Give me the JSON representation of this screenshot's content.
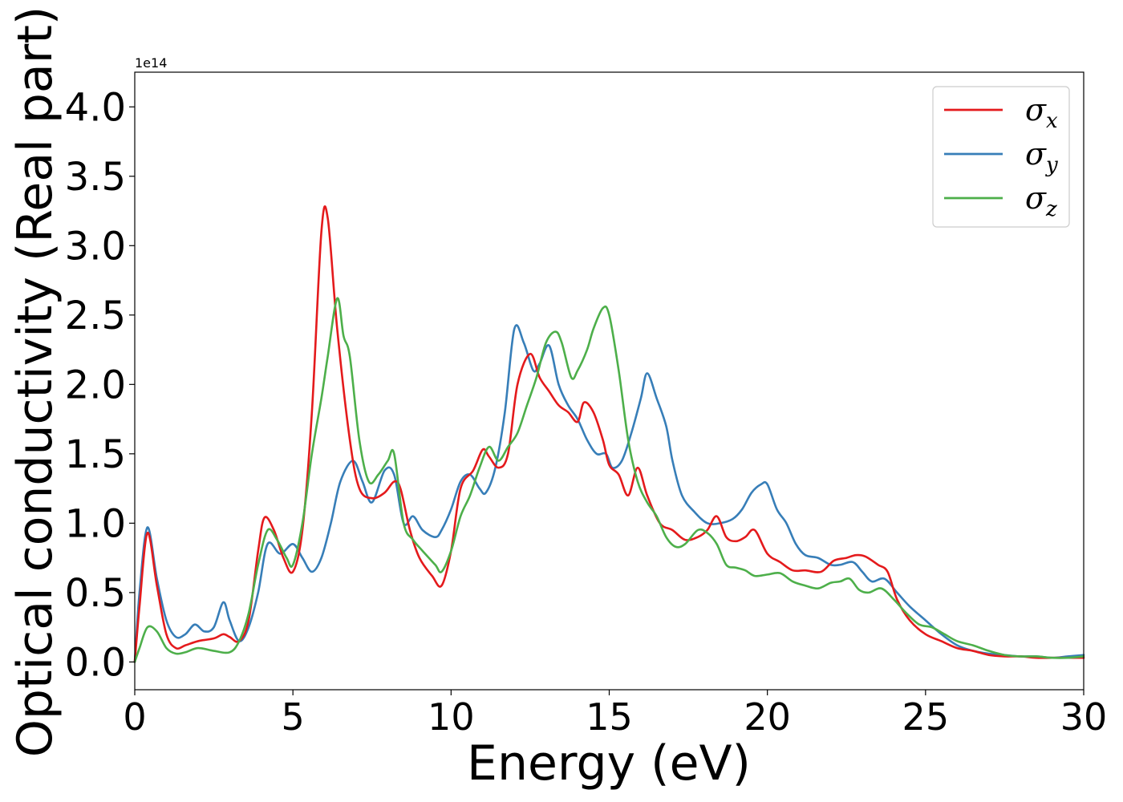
{
  "chart_data": {
    "type": "line",
    "xlabel": "Energy (eV)",
    "ylabel": "Optical conductivity (Real part)",
    "offset_text": "1e14",
    "xlim": [
      0,
      30
    ],
    "ylim": [
      -0.2,
      4.25
    ],
    "xticks": [
      0,
      5,
      10,
      15,
      20,
      25,
      30
    ],
    "xtick_labels": [
      "0",
      "5",
      "10",
      "15",
      "20",
      "25",
      "30"
    ],
    "yticks": [
      0.0,
      0.5,
      1.0,
      1.5,
      2.0,
      2.5,
      3.0,
      3.5,
      4.0
    ],
    "ytick_labels": [
      "0.0",
      "0.5",
      "1.0",
      "1.5",
      "2.0",
      "2.5",
      "3.0",
      "3.5",
      "4.0"
    ],
    "grid": false,
    "legend_position": "upper right",
    "series": [
      {
        "name": "σ",
        "sub": "x",
        "color": "#e41a1c",
        "x": [
          0,
          0.15,
          0.4,
          0.7,
          1.0,
          1.3,
          1.6,
          2.0,
          2.5,
          2.8,
          3.0,
          3.3,
          3.6,
          3.9,
          4.1,
          4.4,
          4.7,
          5.0,
          5.3,
          5.6,
          5.9,
          6.1,
          6.4,
          6.8,
          7.1,
          7.5,
          7.9,
          8.2,
          8.4,
          8.7,
          9.0,
          9.4,
          9.7,
          10.0,
          10.3,
          10.7,
          11.0,
          11.2,
          11.5,
          11.8,
          12.1,
          12.5,
          12.8,
          13.1,
          13.4,
          13.7,
          14.0,
          14.2,
          14.5,
          14.8,
          15.0,
          15.3,
          15.6,
          15.9,
          16.2,
          16.6,
          17.0,
          17.4,
          17.8,
          18.1,
          18.4,
          18.7,
          19.0,
          19.3,
          19.6,
          20.0,
          20.4,
          20.8,
          21.2,
          21.7,
          22.1,
          22.5,
          22.8,
          23.1,
          23.5,
          23.8,
          24.1,
          24.5,
          25.0,
          25.5,
          26.0,
          26.5,
          27.0,
          27.5,
          28.0,
          28.5,
          29.0,
          29.5,
          30.0
        ],
        "y": [
          0.0,
          0.4,
          0.93,
          0.55,
          0.2,
          0.1,
          0.12,
          0.15,
          0.17,
          0.2,
          0.18,
          0.15,
          0.3,
          0.8,
          1.04,
          0.95,
          0.75,
          0.65,
          0.95,
          1.8,
          3.1,
          3.2,
          2.4,
          1.6,
          1.25,
          1.18,
          1.22,
          1.3,
          1.25,
          0.95,
          0.75,
          0.62,
          0.55,
          0.8,
          1.25,
          1.38,
          1.53,
          1.48,
          1.4,
          1.5,
          2.0,
          2.22,
          2.05,
          1.95,
          1.85,
          1.8,
          1.73,
          1.87,
          1.8,
          1.6,
          1.42,
          1.35,
          1.2,
          1.4,
          1.2,
          1.0,
          0.95,
          0.88,
          0.9,
          0.95,
          1.05,
          0.9,
          0.87,
          0.9,
          0.95,
          0.78,
          0.72,
          0.66,
          0.66,
          0.65,
          0.73,
          0.75,
          0.77,
          0.76,
          0.7,
          0.65,
          0.45,
          0.3,
          0.2,
          0.15,
          0.1,
          0.08,
          0.05,
          0.04,
          0.04,
          0.03,
          0.03,
          0.03,
          0.03
        ]
      },
      {
        "name": "σ",
        "sub": "y",
        "color": "#377eb8",
        "x": [
          0,
          0.15,
          0.4,
          0.7,
          1.0,
          1.3,
          1.6,
          1.9,
          2.2,
          2.5,
          2.8,
          3.0,
          3.3,
          3.6,
          3.9,
          4.2,
          4.6,
          5.0,
          5.3,
          5.6,
          5.9,
          6.2,
          6.5,
          6.9,
          7.2,
          7.5,
          7.9,
          8.2,
          8.5,
          8.8,
          9.1,
          9.5,
          9.7,
          10.0,
          10.3,
          10.6,
          10.9,
          11.1,
          11.4,
          11.7,
          12.0,
          12.3,
          12.6,
          12.8,
          13.1,
          13.4,
          13.7,
          14.0,
          14.3,
          14.6,
          14.9,
          15.1,
          15.4,
          15.7,
          16.0,
          16.2,
          16.5,
          16.8,
          17.0,
          17.3,
          17.7,
          18.1,
          18.5,
          18.9,
          19.2,
          19.5,
          19.8,
          20.0,
          20.3,
          20.6,
          20.9,
          21.2,
          21.6,
          22.0,
          22.3,
          22.7,
          23.0,
          23.3,
          23.7,
          24.1,
          24.5,
          25.0,
          25.5,
          26.0,
          26.5,
          27.0,
          27.5,
          28.0,
          28.5,
          29.0,
          29.5,
          30.0
        ],
        "y": [
          0.0,
          0.5,
          0.97,
          0.6,
          0.3,
          0.18,
          0.2,
          0.27,
          0.22,
          0.25,
          0.43,
          0.3,
          0.15,
          0.25,
          0.5,
          0.85,
          0.78,
          0.85,
          0.75,
          0.65,
          0.75,
          1.0,
          1.3,
          1.45,
          1.3,
          1.15,
          1.38,
          1.35,
          1.0,
          1.05,
          0.95,
          0.9,
          0.95,
          1.1,
          1.3,
          1.35,
          1.25,
          1.22,
          1.4,
          1.8,
          2.4,
          2.3,
          2.1,
          2.15,
          2.28,
          2.0,
          1.85,
          1.75,
          1.6,
          1.5,
          1.5,
          1.4,
          1.45,
          1.65,
          1.9,
          2.08,
          1.9,
          1.7,
          1.45,
          1.2,
          1.08,
          1.0,
          1.0,
          1.03,
          1.1,
          1.22,
          1.28,
          1.28,
          1.1,
          1.0,
          0.85,
          0.77,
          0.75,
          0.7,
          0.7,
          0.72,
          0.65,
          0.58,
          0.6,
          0.5,
          0.4,
          0.3,
          0.2,
          0.12,
          0.08,
          0.06,
          0.05,
          0.04,
          0.04,
          0.03,
          0.04,
          0.05
        ]
      },
      {
        "name": "σ",
        "sub": "z",
        "color": "#4daf4a",
        "x": [
          0,
          0.15,
          0.4,
          0.7,
          1.0,
          1.3,
          1.6,
          2.0,
          2.5,
          3.0,
          3.3,
          3.6,
          3.9,
          4.2,
          4.5,
          4.8,
          5.0,
          5.3,
          5.6,
          5.9,
          6.1,
          6.4,
          6.6,
          6.8,
          7.1,
          7.4,
          7.7,
          8.0,
          8.2,
          8.5,
          8.8,
          9.1,
          9.5,
          9.7,
          10.0,
          10.3,
          10.6,
          10.9,
          11.2,
          11.5,
          11.8,
          12.1,
          12.4,
          12.7,
          13.0,
          13.3,
          13.5,
          13.8,
          14.0,
          14.3,
          14.5,
          14.8,
          15.0,
          15.3,
          15.6,
          15.9,
          16.2,
          16.5,
          16.8,
          17.1,
          17.4,
          17.8,
          18.1,
          18.4,
          18.7,
          19.0,
          19.3,
          19.6,
          20.0,
          20.4,
          20.8,
          21.2,
          21.6,
          22.0,
          22.3,
          22.6,
          22.9,
          23.2,
          23.6,
          24.0,
          24.4,
          24.8,
          25.2,
          25.6,
          26.0,
          26.5,
          27.0,
          27.5,
          28.0,
          28.5,
          29.0,
          29.5,
          30.0
        ],
        "y": [
          0.0,
          0.1,
          0.25,
          0.22,
          0.1,
          0.06,
          0.07,
          0.1,
          0.08,
          0.07,
          0.15,
          0.35,
          0.7,
          0.95,
          0.88,
          0.75,
          0.7,
          1.0,
          1.5,
          1.9,
          2.2,
          2.62,
          2.35,
          2.2,
          1.6,
          1.3,
          1.35,
          1.45,
          1.5,
          1.0,
          0.88,
          0.8,
          0.7,
          0.65,
          0.8,
          1.05,
          1.2,
          1.4,
          1.55,
          1.45,
          1.55,
          1.65,
          1.85,
          2.05,
          2.3,
          2.38,
          2.3,
          2.05,
          2.1,
          2.25,
          2.4,
          2.55,
          2.5,
          2.1,
          1.6,
          1.3,
          1.15,
          1.05,
          0.9,
          0.83,
          0.85,
          0.95,
          0.93,
          0.85,
          0.7,
          0.68,
          0.66,
          0.62,
          0.63,
          0.64,
          0.58,
          0.55,
          0.53,
          0.57,
          0.58,
          0.6,
          0.52,
          0.5,
          0.53,
          0.45,
          0.35,
          0.27,
          0.25,
          0.2,
          0.15,
          0.12,
          0.08,
          0.05,
          0.04,
          0.04,
          0.03,
          0.03,
          0.04
        ]
      }
    ]
  }
}
